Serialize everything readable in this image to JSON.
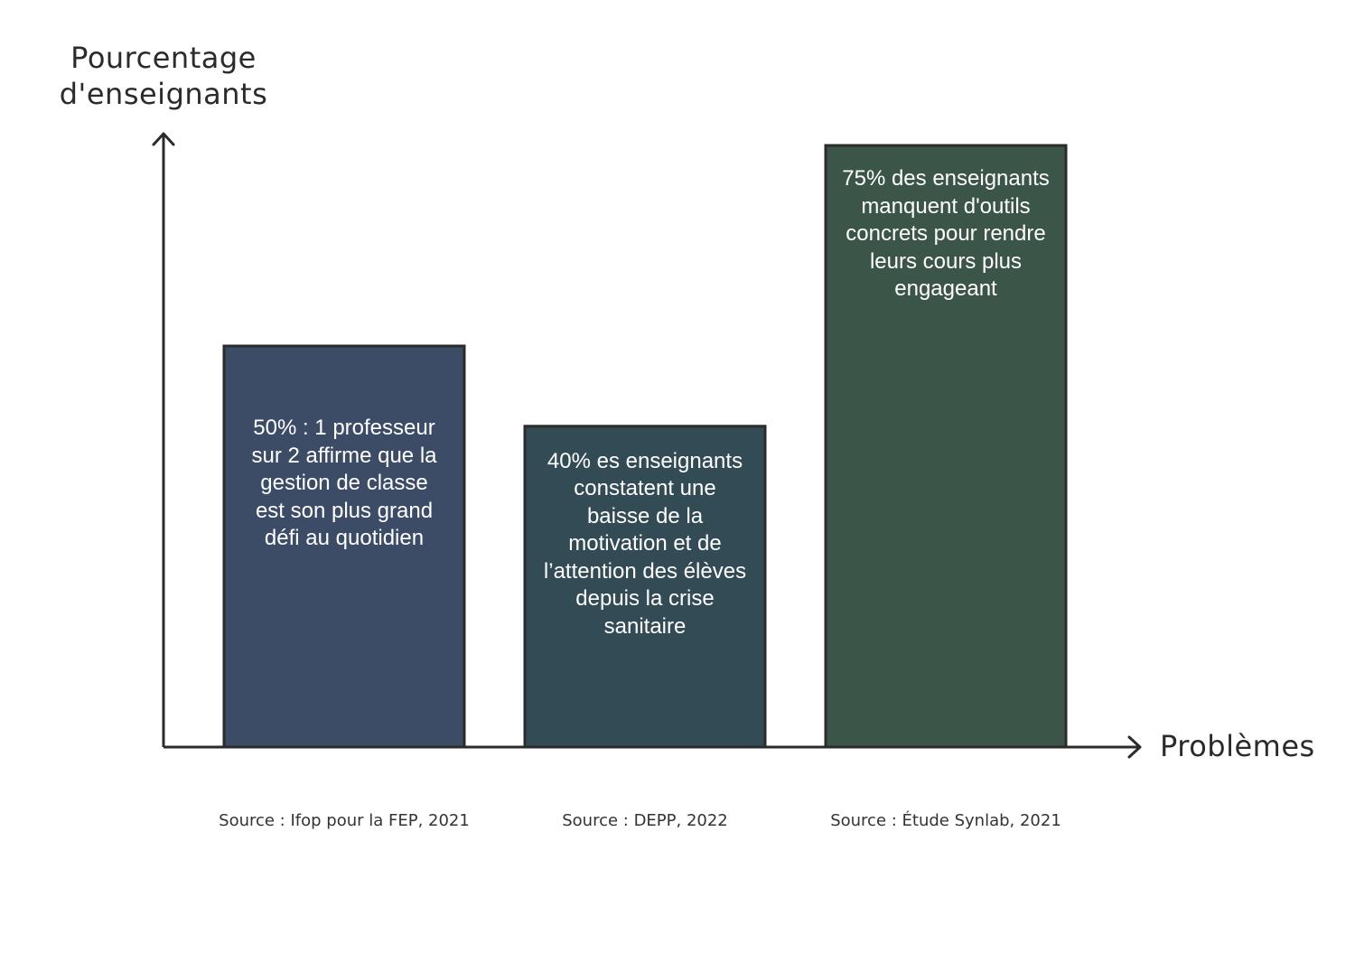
{
  "chart_data": {
    "type": "bar",
    "ylabel": "Pourcentage d'enseignants",
    "xlabel": "Problèmes",
    "ylim": [
      0,
      100
    ],
    "grid": false,
    "categories": [
      {
        "value": 50,
        "label": "50% : 1 professeur sur 2 affirme que la gestion de classe est son plus grand défi au quotidien",
        "label_lines": [
          "50% : 1 professeur",
          "sur 2 affirme que la",
          "gestion de classe",
          "est son plus grand",
          "défi au quotidien"
        ],
        "source": "Source : Ifop pour la FEP, 2021",
        "color": "#3d4c66"
      },
      {
        "value": 40,
        "label": "40% es enseignants constatent une baisse de la motivation et de l’attention des élèves depuis la crise sanitaire",
        "label_lines": [
          "40% es enseignants",
          "constatent une",
          "baisse de la",
          "motivation et de",
          "l’attention des élèves",
          "depuis la crise",
          "sanitaire"
        ],
        "source": "Source : DEPP, 2022",
        "color": "#334b55"
      },
      {
        "value": 75,
        "label": "75% des enseignants manquent d'outils concrets pour rendre leurs cours plus engageant",
        "label_lines": [
          "75% des enseignants",
          "manquent d'outils",
          "concrets pour rendre",
          "leurs cours plus",
          "engageant"
        ],
        "source": "Source : Étude Synlab, 2021",
        "color": "#3c5549"
      }
    ],
    "colors": {
      "axis": "#2b2b2b",
      "bar_border": "#2b2b2b",
      "bar_text": "#ffffff"
    }
  }
}
